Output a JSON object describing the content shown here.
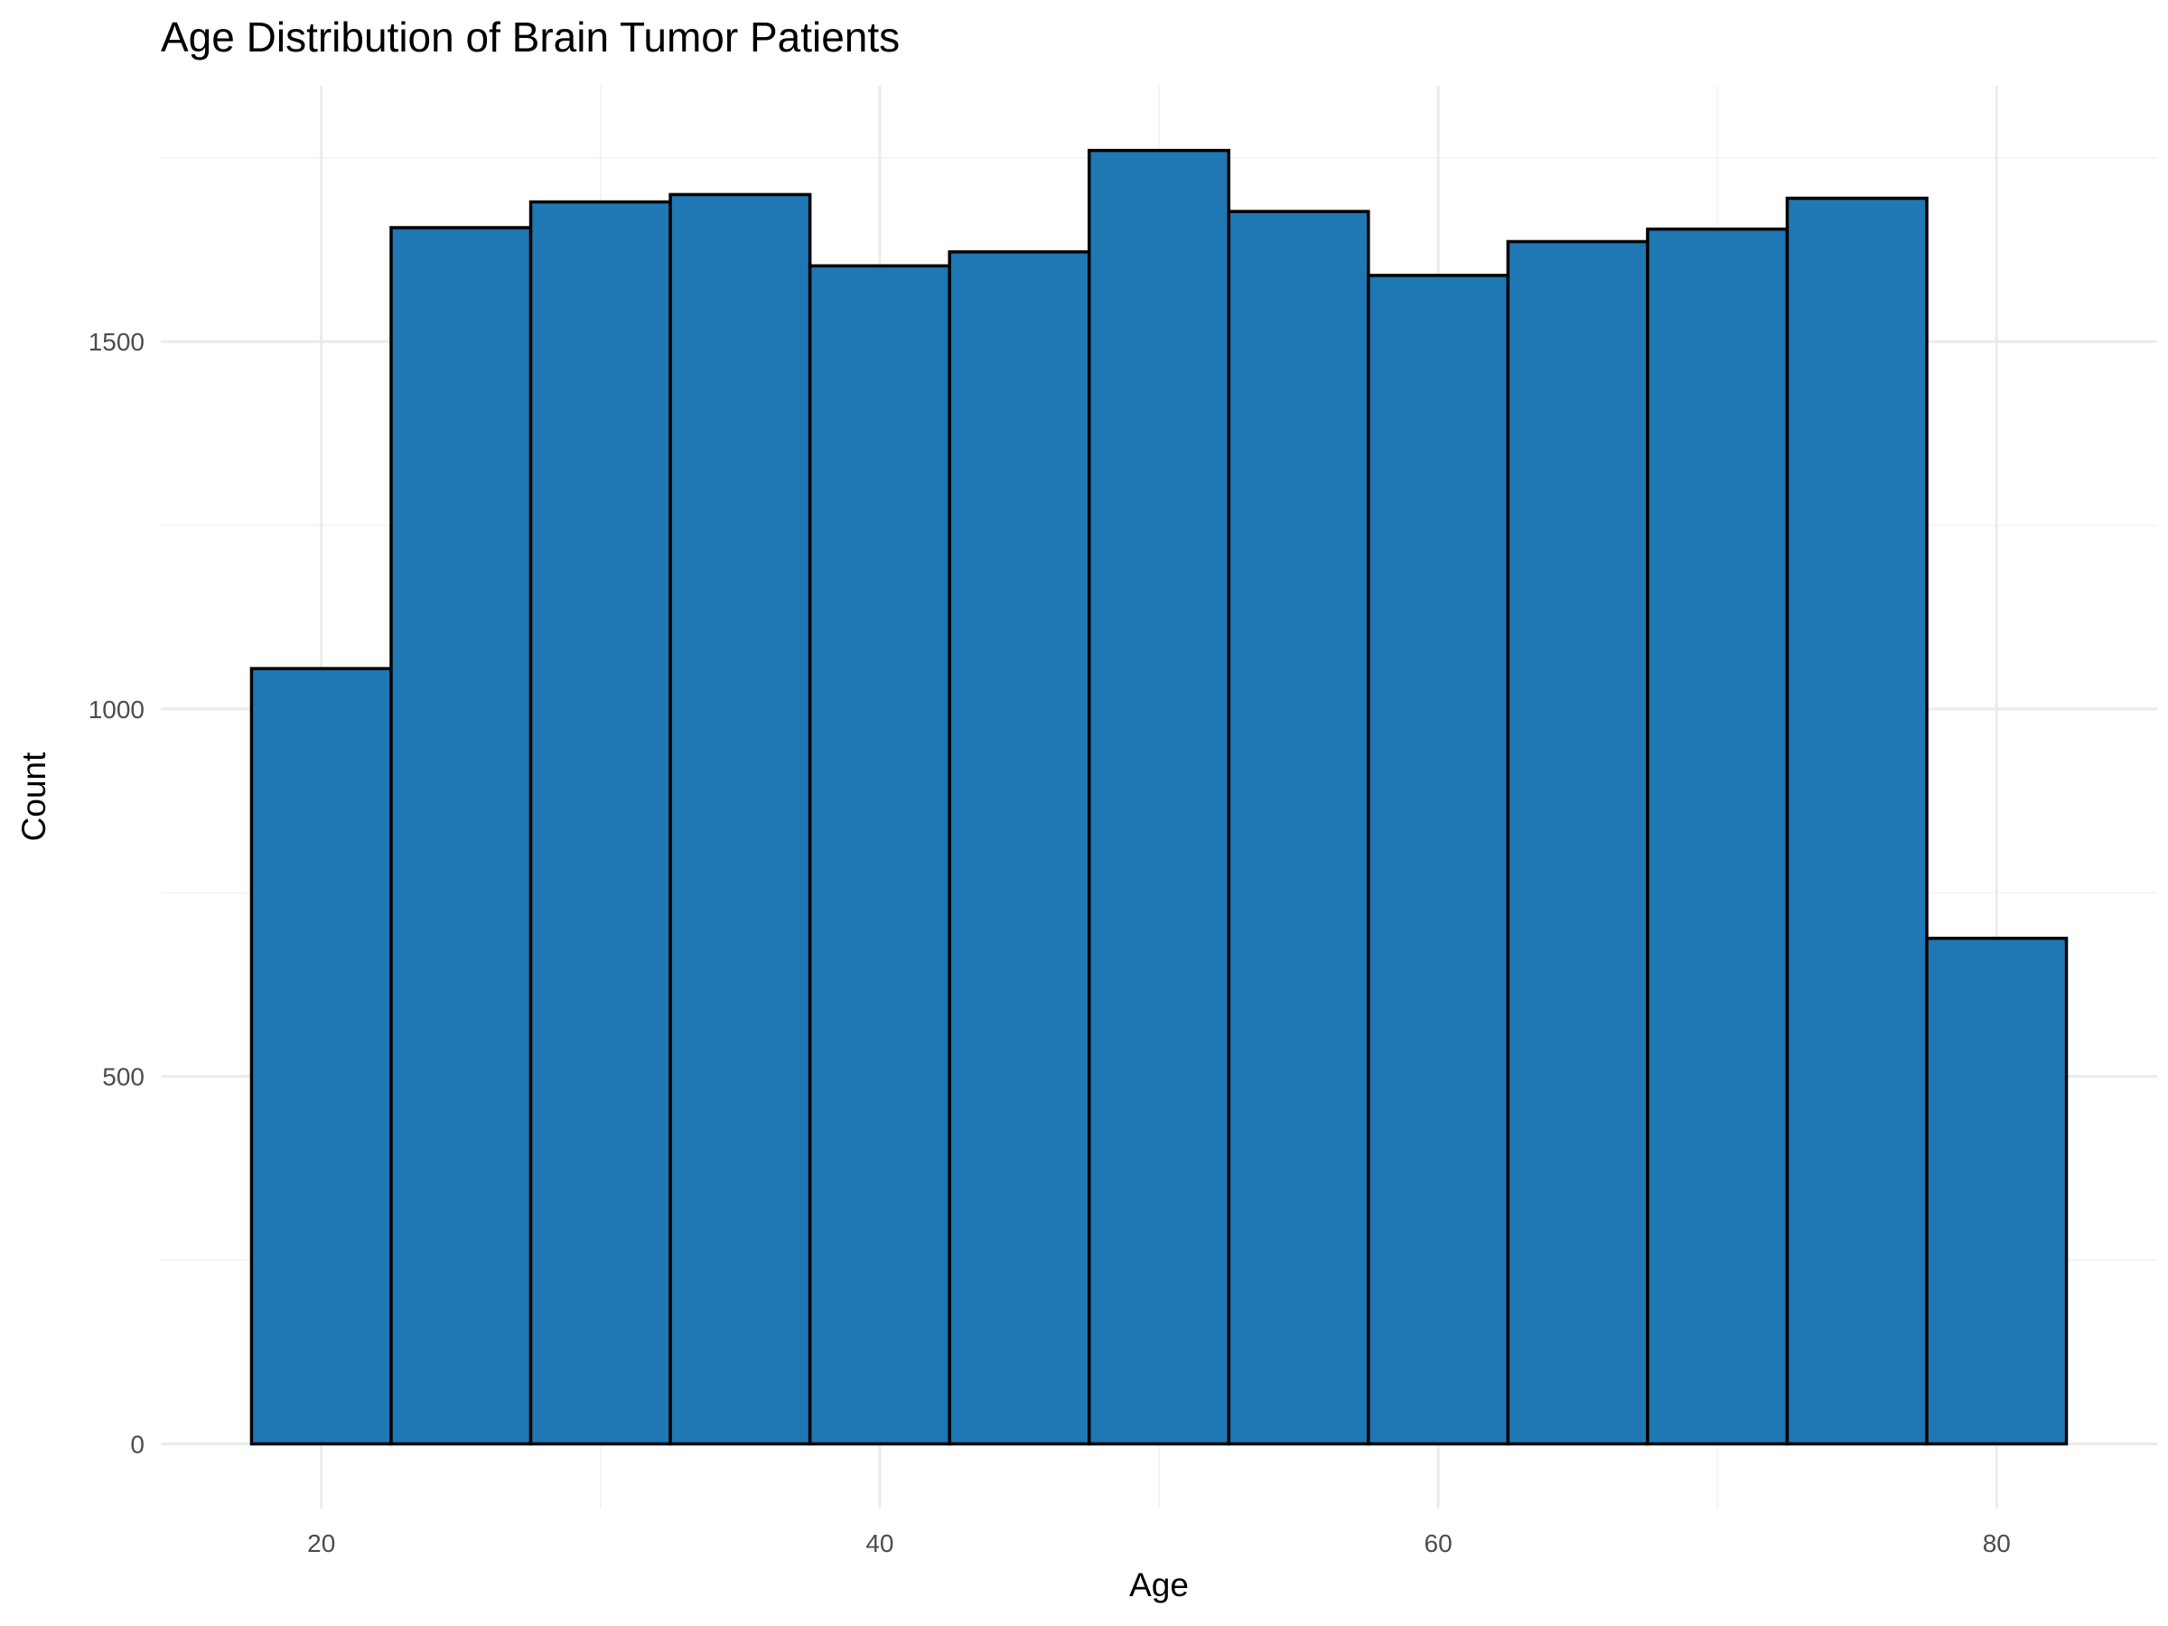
{
  "chart_data": {
    "type": "bar",
    "title": "Age Distribution of Brain Tumor Patients",
    "xlabel": "Age",
    "ylabel": "Count",
    "bin_width": 5,
    "bins": [
      {
        "start": 17.5,
        "end": 22.5,
        "count": 1055
      },
      {
        "start": 22.5,
        "end": 27.5,
        "count": 1655
      },
      {
        "start": 27.5,
        "end": 32.5,
        "count": 1690
      },
      {
        "start": 32.5,
        "end": 37.5,
        "count": 1700
      },
      {
        "start": 37.5,
        "end": 42.5,
        "count": 1603
      },
      {
        "start": 42.5,
        "end": 47.5,
        "count": 1622
      },
      {
        "start": 47.5,
        "end": 52.5,
        "count": 1760
      },
      {
        "start": 52.5,
        "end": 57.5,
        "count": 1677
      },
      {
        "start": 57.5,
        "end": 62.5,
        "count": 1590
      },
      {
        "start": 62.5,
        "end": 67.5,
        "count": 1636
      },
      {
        "start": 67.5,
        "end": 72.5,
        "count": 1653
      },
      {
        "start": 72.5,
        "end": 77.5,
        "count": 1695
      },
      {
        "start": 77.5,
        "end": 82.5,
        "count": 688
      }
    ],
    "xlim": [
      14.25,
      85.75
    ],
    "ylim": [
      -88,
      1848
    ],
    "x_ticks": [
      20,
      40,
      60,
      80
    ],
    "x_minor_ticks": [
      30,
      50,
      70
    ],
    "y_ticks": [
      0,
      500,
      1000,
      1500
    ],
    "y_minor_ticks": [
      250,
      750,
      1250,
      1750
    ],
    "fill_color": "#1f77b4",
    "edge_color": "#000000",
    "grid": true,
    "legend": "none"
  }
}
